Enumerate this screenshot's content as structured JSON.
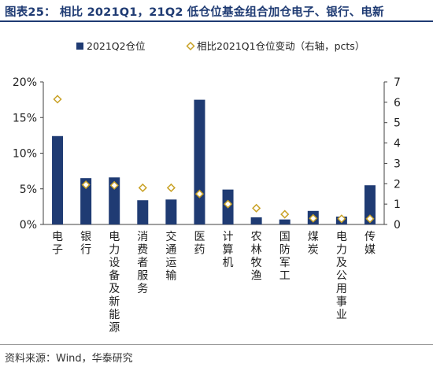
{
  "header": {
    "title": "图表25：  相比 2021Q1，21Q2 低仓位基金组合加仓电子、银行、电新"
  },
  "footer": {
    "source": "资料来源：Wind，华泰研究"
  },
  "colors": {
    "bar": "#1f3b73",
    "marker_stroke": "#c9a227",
    "marker_fill": "#ffffff",
    "title": "#1f3b73"
  },
  "chart_data": {
    "type": "bar",
    "categories": [
      "电子",
      "银行",
      "电力设备及新能源",
      "消费者服务",
      "交通运输",
      "医药",
      "计算机",
      "农林牧渔",
      "国防军工",
      "煤炭",
      "电力及公用事业",
      "传媒"
    ],
    "series": [
      {
        "name": "2021Q2仓位",
        "type": "bar",
        "axis": "left",
        "values": [
          12.4,
          6.5,
          6.6,
          3.4,
          3.5,
          17.5,
          4.9,
          1.0,
          0.7,
          1.9,
          1.1,
          5.5
        ]
      },
      {
        "name": "相比2021Q1仓位变动（右轴，pcts）",
        "type": "scatter",
        "axis": "right",
        "marker": "diamond",
        "values": [
          6.15,
          1.95,
          1.92,
          1.8,
          1.8,
          1.5,
          1.0,
          0.8,
          0.5,
          0.3,
          0.28,
          0.28
        ]
      }
    ],
    "y_left": {
      "min": 0,
      "max": 20,
      "ticks": [
        "0%",
        "5%",
        "10%",
        "15%",
        "20%"
      ],
      "tick_values": [
        0,
        5,
        10,
        15,
        20
      ]
    },
    "y_right": {
      "min": 0,
      "max": 7,
      "ticks": [
        "0",
        "1",
        "2",
        "3",
        "4",
        "5",
        "6",
        "7"
      ],
      "tick_values": [
        0,
        1,
        2,
        3,
        4,
        5,
        6,
        7
      ]
    },
    "legend": {
      "placement": "top"
    },
    "grid": false
  }
}
